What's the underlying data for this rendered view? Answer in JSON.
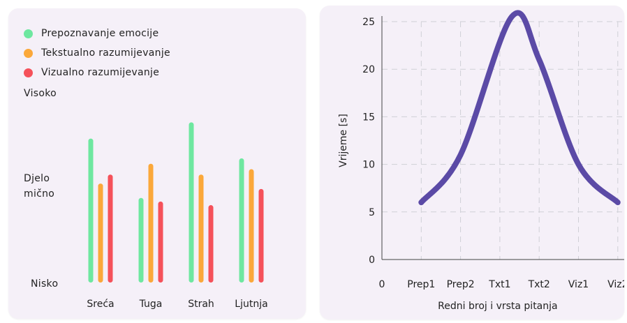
{
  "chart_data": [
    {
      "type": "bar",
      "legend": [
        "Prepoznavanje emocije",
        "Tekstualno razumijevanje",
        "Vizualno razumijevanje"
      ],
      "legend_placement": "top-left",
      "y_tick_labels": {
        "high": "Visoko",
        "mid_line1": "Djelo",
        "mid_line2": "mično",
        "low": "Nisko"
      },
      "categories": [
        "Sreća",
        "Tuga",
        "Strah",
        "Ljutnja"
      ],
      "series": [
        {
          "name": "Prepoznavanje emocije",
          "color": "#6ee7a0",
          "values": [
            0.8,
            0.47,
            0.89,
            0.69
          ]
        },
        {
          "name": "Tekstualno razumijevanje",
          "color": "#fba83a",
          "values": [
            0.55,
            0.66,
            0.6,
            0.63
          ]
        },
        {
          "name": "Vizualno razumijevanje",
          "color": "#f5515a",
          "values": [
            0.6,
            0.45,
            0.43,
            0.52
          ]
        }
      ],
      "ylim": [
        0,
        1
      ],
      "grid": false
    },
    {
      "type": "line",
      "xlabel": "Redni broj i vrsta pitanja",
      "ylabel": "Vrijeme [s]",
      "x_tick_labels": [
        "0",
        "Prep1",
        "Prep2",
        "Txt1",
        "Txt2",
        "Viz1",
        "Viz2"
      ],
      "y_ticks": [
        0,
        5,
        10,
        15,
        20,
        25
      ],
      "xlim": [
        0,
        6
      ],
      "ylim": [
        0,
        25
      ],
      "grid": true,
      "color": "#5b4aa6",
      "points": [
        {
          "x": 1,
          "y": 6
        },
        {
          "x": 2,
          "y": 11
        },
        {
          "x": 3.3,
          "y": 25.5
        },
        {
          "x": 4,
          "y": 21
        },
        {
          "x": 5,
          "y": 10
        },
        {
          "x": 6,
          "y": 6
        }
      ]
    }
  ]
}
